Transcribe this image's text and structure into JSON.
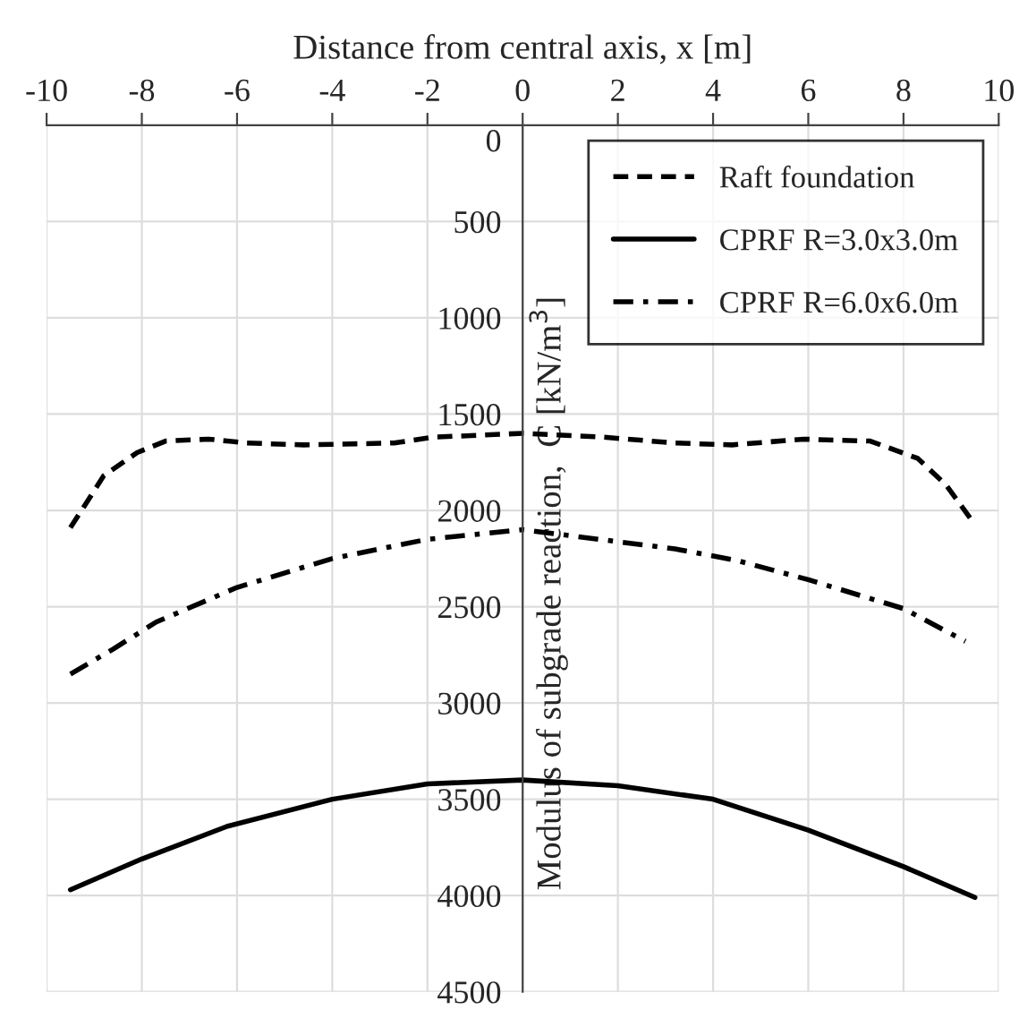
{
  "chart_data": {
    "type": "line",
    "xlabel": "Distance from central axis, x [m]",
    "ylabel": "Modulus of subgrade reaction,  C [kN/m$^{3}$]",
    "xlim": [
      -10,
      10
    ],
    "xticks": [
      -10,
      -8,
      -6,
      -4,
      -2,
      0,
      2,
      4,
      6,
      8,
      10
    ],
    "ylim": [
      4500,
      0
    ],
    "yticks": [
      0,
      500,
      1000,
      1500,
      2000,
      2500,
      3000,
      3500,
      4000,
      4500
    ],
    "grid": true,
    "legend": "top right",
    "marker": "none",
    "series": [
      {
        "name": "Raft foundation",
        "color": "#000000",
        "line_style": "dashed",
        "x": [
          -9.5,
          -8.8,
          -8.1,
          -7.5,
          -6.6,
          -5.8,
          -4.6,
          -2.7,
          -1.9,
          0,
          1.7,
          3.2,
          4.4,
          5.9,
          7.3,
          8.3,
          8.9,
          9.4
        ],
        "values": [
          2090,
          1820,
          1700,
          1640,
          1630,
          1650,
          1660,
          1650,
          1620,
          1600,
          1620,
          1650,
          1660,
          1630,
          1640,
          1730,
          1870,
          2040
        ]
      },
      {
        "name": "CPRF R=3.0x3.0m",
        "color": "#000000",
        "line_style": "solid",
        "x": [
          -9.5,
          -8,
          -6.2,
          -4,
          -2,
          0,
          2,
          4,
          6,
          8,
          9.5
        ],
        "values": [
          3970,
          3810,
          3640,
          3500,
          3420,
          3400,
          3430,
          3500,
          3660,
          3850,
          4010
        ]
      },
      {
        "name": "CPRF R=6.0x6.0m",
        "color": "#000000",
        "line_style": "dashdot",
        "x": [
          -9.5,
          -8.6,
          -7.7,
          -6,
          -4,
          -2,
          -0.8,
          0,
          1.6,
          3.2,
          4.5,
          6,
          8,
          9.3
        ],
        "values": [
          2850,
          2720,
          2580,
          2400,
          2250,
          2150,
          2120,
          2100,
          2150,
          2200,
          2260,
          2360,
          2510,
          2680
        ]
      }
    ]
  }
}
